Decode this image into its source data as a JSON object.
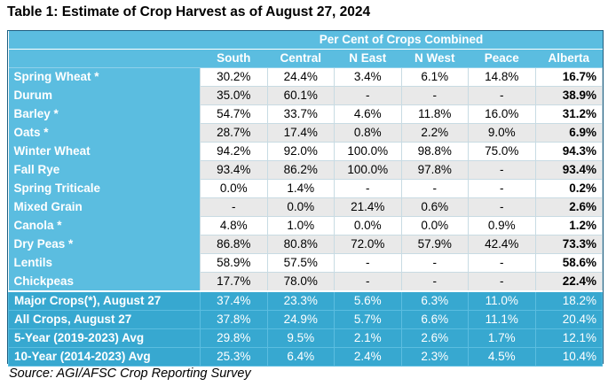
{
  "title": "Table 1: Estimate of Crop Harvest as of August 27, 2024",
  "group_header": "Per Cent of Crops Combined",
  "columns": [
    "South",
    "Central",
    "N East",
    "N West",
    "Peace",
    "Alberta"
  ],
  "rows": [
    {
      "name": "Spring Wheat *",
      "values": [
        "30.2%",
        "24.4%",
        "3.4%",
        "6.1%",
        "14.8%",
        "16.7%"
      ]
    },
    {
      "name": "Durum",
      "values": [
        "35.0%",
        "60.1%",
        "-",
        "-",
        "-",
        "38.9%"
      ]
    },
    {
      "name": "Barley *",
      "values": [
        "54.7%",
        "33.7%",
        "4.6%",
        "11.8%",
        "16.0%",
        "31.2%"
      ]
    },
    {
      "name": "Oats *",
      "values": [
        "28.7%",
        "17.4%",
        "0.8%",
        "2.2%",
        "9.0%",
        "6.9%"
      ]
    },
    {
      "name": "Winter Wheat",
      "values": [
        "94.2%",
        "92.0%",
        "100.0%",
        "98.8%",
        "75.0%",
        "94.3%"
      ]
    },
    {
      "name": "Fall Rye",
      "values": [
        "93.4%",
        "86.2%",
        "100.0%",
        "97.8%",
        "-",
        "93.4%"
      ]
    },
    {
      "name": "Spring Triticale",
      "values": [
        "0.0%",
        "1.4%",
        "-",
        "-",
        "-",
        "0.2%"
      ]
    },
    {
      "name": "Mixed Grain",
      "values": [
        "-",
        "0.0%",
        "21.4%",
        "0.6%",
        "-",
        "2.6%"
      ]
    },
    {
      "name": "Canola *",
      "values": [
        "4.8%",
        "1.0%",
        "0.0%",
        "0.0%",
        "0.9%",
        "1.2%"
      ]
    },
    {
      "name": "Dry Peas *",
      "values": [
        "86.8%",
        "80.8%",
        "72.0%",
        "57.9%",
        "42.4%",
        "73.3%"
      ]
    },
    {
      "name": "Lentils",
      "values": [
        "58.9%",
        "57.5%",
        "-",
        "-",
        "-",
        "58.6%"
      ]
    },
    {
      "name": "Chickpeas",
      "values": [
        "17.7%",
        "78.0%",
        "-",
        "-",
        "-",
        "22.4%"
      ]
    }
  ],
  "summary_rows": [
    {
      "name": "Major Crops(*), August 27",
      "values": [
        "37.4%",
        "23.3%",
        "5.6%",
        "6.3%",
        "11.0%",
        "18.2%"
      ]
    },
    {
      "name": "All Crops, August 27",
      "values": [
        "37.8%",
        "24.9%",
        "5.7%",
        "6.6%",
        "11.1%",
        "20.4%"
      ]
    },
    {
      "name": "5-Year (2019-2023) Avg",
      "values": [
        "29.8%",
        "9.5%",
        "2.1%",
        "2.6%",
        "1.7%",
        "12.1%"
      ]
    },
    {
      "name": "10-Year (2014-2023) Avg",
      "values": [
        "25.3%",
        "6.4%",
        "2.4%",
        "2.3%",
        "4.5%",
        "10.4%"
      ]
    }
  ],
  "source": "Source: AGI/AFSC Crop Reporting Survey"
}
